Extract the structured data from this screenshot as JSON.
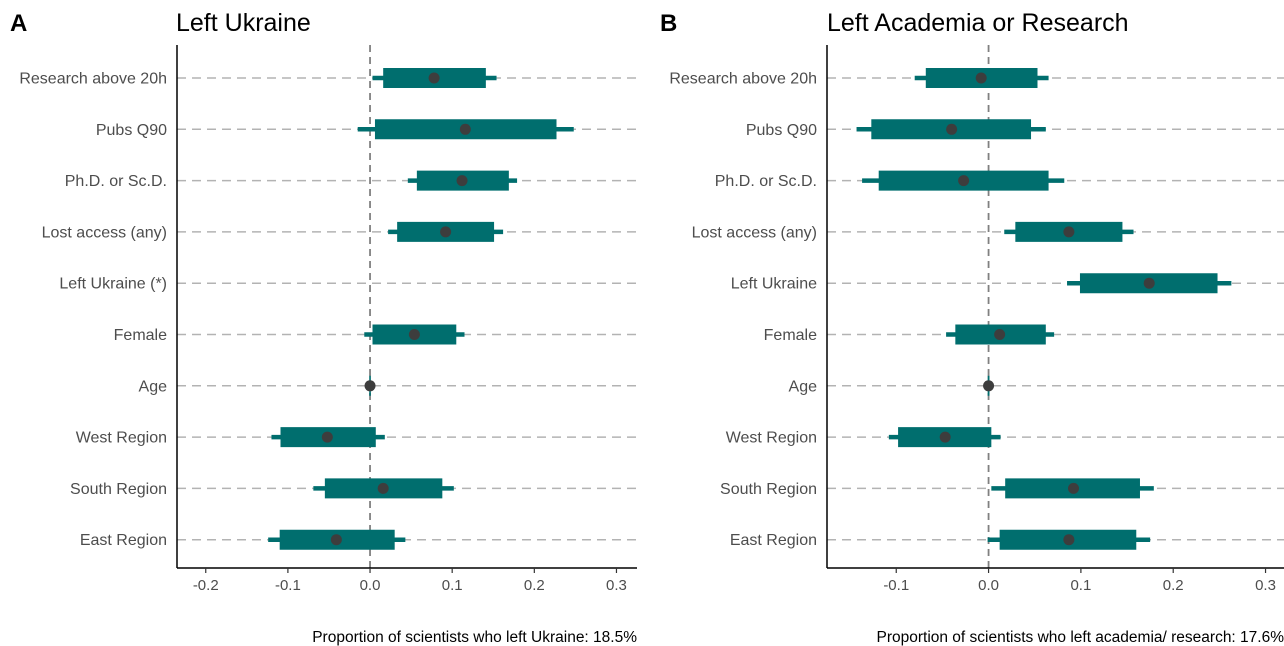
{
  "chart_data": [
    {
      "type": "coefficient-interval",
      "panel_letter": "A",
      "title": "Left Ukraine",
      "caption": "Proportion of scientists who left Ukraine: 18.5%",
      "xlim": [
        -0.235,
        0.325
      ],
      "xticks": [
        -0.2,
        -0.1,
        0.0,
        0.1,
        0.2,
        0.3
      ],
      "xtick_labels": [
        "-0.2",
        "-0.1",
        "0.0",
        "0.1",
        "0.2",
        "0.3"
      ],
      "reference_line": 0.0,
      "grid": "horizontal dashed",
      "bar_color": "#006e6e",
      "point_color": "#3d3d3d",
      "categories": [
        "Research above 20h",
        "Pubs Q90",
        "Ph.D. or Sc.D.",
        "Lost access (any)",
        "Left Ukraine (*)",
        "Female",
        "Age",
        "West Region",
        "South Region",
        "East Region"
      ],
      "estimates": [
        {
          "label": "Research above 20h",
          "est": 0.078,
          "lo95": 0.003,
          "hi95": 0.154,
          "lo80": 0.016,
          "hi80": 0.141
        },
        {
          "label": "Pubs Q90",
          "est": 0.116,
          "lo95": -0.015,
          "hi95": 0.248,
          "lo80": 0.006,
          "hi80": 0.227
        },
        {
          "label": "Ph.D. or Sc.D.",
          "est": 0.112,
          "lo95": 0.046,
          "hi95": 0.179,
          "lo80": 0.057,
          "hi80": 0.169
        },
        {
          "label": "Lost access (any)",
          "est": 0.092,
          "lo95": 0.022,
          "hi95": 0.162,
          "lo80": 0.033,
          "hi80": 0.151
        },
        {
          "label": "Left Ukraine (*)",
          "est": null
        },
        {
          "label": "Female",
          "est": 0.054,
          "lo95": -0.007,
          "hi95": 0.115,
          "lo80": 0.003,
          "hi80": 0.105
        },
        {
          "label": "Age",
          "est": 0.0,
          "lo95": -0.001,
          "hi95": 0.001,
          "lo80": -0.001,
          "hi80": 0.001
        },
        {
          "label": "West Region",
          "est": -0.052,
          "lo95": -0.12,
          "hi95": 0.018,
          "lo80": -0.109,
          "hi80": 0.007
        },
        {
          "label": "South Region",
          "est": 0.016,
          "lo95": -0.069,
          "hi95": 0.102,
          "lo80": -0.055,
          "hi80": 0.088
        },
        {
          "label": "East Region",
          "est": -0.041,
          "lo95": -0.124,
          "hi95": 0.043,
          "lo80": -0.11,
          "hi80": 0.03
        }
      ]
    },
    {
      "type": "coefficient-interval",
      "panel_letter": "B",
      "title": "Left Academia or Research",
      "caption": "Proportion of scientists who left academia/ research: 17.6%",
      "xlim": [
        -0.175,
        0.32
      ],
      "xticks": [
        -0.1,
        0.0,
        0.1,
        0.2,
        0.3
      ],
      "xtick_labels": [
        "-0.1",
        "0.0",
        "0.1",
        "0.2",
        "0.3"
      ],
      "reference_line": 0.0,
      "grid": "horizontal dashed",
      "bar_color": "#006e6e",
      "point_color": "#3d3d3d",
      "categories": [
        "Research above 20h",
        "Pubs Q90",
        "Ph.D. or Sc.D.",
        "Lost access (any)",
        "Left Ukraine",
        "Female",
        "Age",
        "West Region",
        "South Region",
        "East Region"
      ],
      "estimates": [
        {
          "label": "Research above 20h",
          "est": -0.008,
          "lo95": -0.08,
          "hi95": 0.065,
          "lo80": -0.068,
          "hi80": 0.053
        },
        {
          "label": "Pubs Q90",
          "est": -0.04,
          "lo95": -0.143,
          "hi95": 0.062,
          "lo80": -0.127,
          "hi80": 0.046
        },
        {
          "label": "Ph.D. or Sc.D.",
          "est": -0.027,
          "lo95": -0.137,
          "hi95": 0.082,
          "lo80": -0.119,
          "hi80": 0.065
        },
        {
          "label": "Lost access (any)",
          "est": 0.087,
          "lo95": 0.017,
          "hi95": 0.157,
          "lo80": 0.029,
          "hi80": 0.145
        },
        {
          "label": "Left Ukraine",
          "est": 0.174,
          "lo95": 0.085,
          "hi95": 0.263,
          "lo80": 0.099,
          "hi80": 0.248
        },
        {
          "label": "Female",
          "est": 0.012,
          "lo95": -0.046,
          "hi95": 0.071,
          "lo80": -0.036,
          "hi80": 0.062
        },
        {
          "label": "Age",
          "est": 0.0,
          "lo95": -0.001,
          "hi95": 0.001,
          "lo80": -0.001,
          "hi80": 0.001
        },
        {
          "label": "West Region",
          "est": -0.047,
          "lo95": -0.108,
          "hi95": 0.013,
          "lo80": -0.098,
          "hi80": 0.003
        },
        {
          "label": "South Region",
          "est": 0.092,
          "lo95": 0.003,
          "hi95": 0.179,
          "lo80": 0.018,
          "hi80": 0.164
        },
        {
          "label": "East Region",
          "est": 0.087,
          "lo95": -0.001,
          "hi95": 0.175,
          "lo80": 0.012,
          "hi80": 0.16
        }
      ]
    }
  ]
}
